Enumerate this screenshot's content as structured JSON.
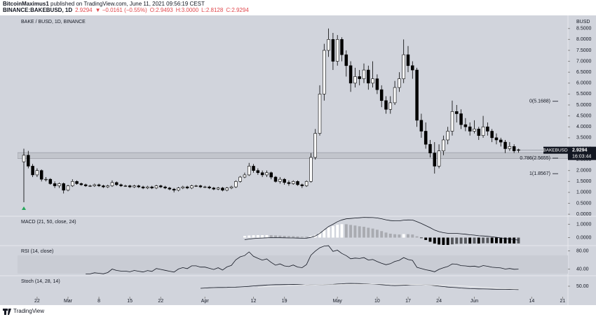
{
  "header": {
    "author": "BitcoinMaximus1",
    "published": "published on TradingView.com, June 11, 2021 09:56:19 CEST",
    "symbol": "BINANCE:BAKEBUSD, 1D",
    "last": "2.9294",
    "change": "▼ −0.0161 (−0.55%)",
    "ohlc": [
      "O:2.9493",
      "H:3.0000",
      "L:2.8128",
      "C:2.9294"
    ]
  },
  "footer": {
    "brand": "TradingView"
  },
  "chart_data": {
    "type": "candlestick",
    "title": "BAKE / BUSD, 1D, BINANCE",
    "currency": "BUSD",
    "price_tag": {
      "symbol": "BAKEBUSD",
      "price": "2.9294",
      "countdown": "16:03:44"
    },
    "open": [
      2.4,
      2.7,
      2.2,
      1.8,
      2.0,
      1.6,
      1.6,
      1.4,
      1.3,
      1.4,
      1.1,
      1.3,
      1.5,
      1.4,
      1.35,
      1.3,
      1.3,
      1.35,
      1.3,
      1.25,
      1.3,
      1.45,
      1.35,
      1.3,
      1.3,
      1.25,
      1.3,
      1.25,
      1.2,
      1.25,
      1.2,
      1.3,
      1.25,
      1.2,
      1.15,
      1.1,
      1.2,
      1.25,
      1.2,
      1.3,
      1.3,
      1.25,
      1.25,
      1.2,
      1.15,
      1.2,
      1.1,
      1.2,
      1.25,
      1.5,
      1.7,
      1.8,
      2.2,
      2.0,
      1.9,
      1.8,
      1.9,
      1.7,
      1.5,
      1.6,
      1.45,
      1.4,
      1.5,
      1.35,
      1.3,
      1.5,
      2.6,
      3.7,
      5.5,
      7.5,
      8.0,
      7.0,
      8.0,
      7.3,
      6.8,
      6.0,
      6.3,
      6.2,
      6.6,
      6.0,
      6.2,
      5.7,
      5.2,
      4.8,
      5.1,
      5.8,
      6.2,
      7.3,
      6.8,
      6.6,
      4.3,
      3.8,
      3.2,
      2.8,
      2.2,
      2.9,
      3.4,
      3.8,
      4.7,
      4.6,
      4.1,
      4.0,
      3.8,
      3.9,
      3.6,
      4.0,
      3.8,
      3.5,
      3.4,
      3.3,
      3.0,
      3.1,
      2.9493
    ],
    "high": [
      3.0,
      2.9,
      2.3,
      2.1,
      2.05,
      1.7,
      1.65,
      1.5,
      1.45,
      1.45,
      1.35,
      1.6,
      1.55,
      1.45,
      1.4,
      1.35,
      1.4,
      1.4,
      1.35,
      1.35,
      1.55,
      1.5,
      1.4,
      1.35,
      1.35,
      1.35,
      1.35,
      1.3,
      1.3,
      1.3,
      1.35,
      1.35,
      1.3,
      1.25,
      1.2,
      1.25,
      1.3,
      1.3,
      1.35,
      1.35,
      1.35,
      1.3,
      1.3,
      1.25,
      1.25,
      1.25,
      1.25,
      1.3,
      1.55,
      1.75,
      1.9,
      2.35,
      2.3,
      2.1,
      2.0,
      2.0,
      1.95,
      1.75,
      1.7,
      1.65,
      1.55,
      1.55,
      1.55,
      1.4,
      1.55,
      2.8,
      3.9,
      5.9,
      7.8,
      8.5,
      8.3,
      8.2,
      8.1,
      7.5,
      7.0,
      6.7,
      6.6,
      6.9,
      6.8,
      7.0,
      6.4,
      5.9,
      5.4,
      5.4,
      6.1,
      6.5,
      8.0,
      7.7,
      7.0,
      6.7,
      4.6,
      4.2,
      3.4,
      3.3,
      3.2,
      3.6,
      4.0,
      5.2,
      5.0,
      4.8,
      4.4,
      4.2,
      4.3,
      4.0,
      4.5,
      4.2,
      3.9,
      3.7,
      3.5,
      3.4,
      3.3,
      3.2,
      3.0
    ],
    "low": [
      0.55,
      2.1,
      1.7,
      1.7,
      1.5,
      1.5,
      1.35,
      1.2,
      1.2,
      0.95,
      1.05,
      1.25,
      1.35,
      1.3,
      1.25,
      1.25,
      1.25,
      1.25,
      1.2,
      1.2,
      1.25,
      1.3,
      1.25,
      1.25,
      1.2,
      1.2,
      1.2,
      1.15,
      1.15,
      1.15,
      1.15,
      1.2,
      1.15,
      1.1,
      1.0,
      1.05,
      1.15,
      1.15,
      1.15,
      1.25,
      1.2,
      1.2,
      1.15,
      1.1,
      1.1,
      1.05,
      1.05,
      1.15,
      1.2,
      1.45,
      1.65,
      1.75,
      1.9,
      1.8,
      1.7,
      1.7,
      1.6,
      1.45,
      1.4,
      1.35,
      1.3,
      1.35,
      1.3,
      1.2,
      1.25,
      1.45,
      2.5,
      3.6,
      5.2,
      7.2,
      6.6,
      6.8,
      7.0,
      6.3,
      5.6,
      5.8,
      5.9,
      6.0,
      5.7,
      5.8,
      5.5,
      4.9,
      4.6,
      4.6,
      5.0,
      5.6,
      6.0,
      6.5,
      6.2,
      4.0,
      3.5,
      3.0,
      2.6,
      1.86,
      2.1,
      2.7,
      3.2,
      3.6,
      4.2,
      3.9,
      3.8,
      3.6,
      3.7,
      3.4,
      3.5,
      3.6,
      3.3,
      3.2,
      3.1,
      2.8,
      2.9,
      2.8,
      2.8128
    ],
    "close": [
      2.7,
      2.2,
      1.8,
      2.0,
      1.6,
      1.6,
      1.4,
      1.3,
      1.4,
      1.1,
      1.3,
      1.5,
      1.4,
      1.35,
      1.3,
      1.3,
      1.35,
      1.3,
      1.25,
      1.3,
      1.45,
      1.35,
      1.3,
      1.3,
      1.25,
      1.3,
      1.25,
      1.2,
      1.25,
      1.2,
      1.3,
      1.25,
      1.2,
      1.15,
      1.1,
      1.2,
      1.25,
      1.2,
      1.3,
      1.3,
      1.25,
      1.25,
      1.2,
      1.15,
      1.2,
      1.1,
      1.2,
      1.25,
      1.5,
      1.7,
      1.8,
      2.2,
      2.0,
      1.9,
      1.8,
      1.9,
      1.7,
      1.5,
      1.6,
      1.45,
      1.4,
      1.5,
      1.35,
      1.3,
      1.5,
      2.6,
      3.7,
      5.5,
      7.5,
      8.0,
      7.0,
      8.0,
      7.3,
      6.8,
      6.0,
      6.3,
      6.2,
      6.6,
      6.0,
      6.2,
      5.7,
      5.2,
      4.8,
      5.1,
      5.8,
      6.2,
      7.3,
      6.8,
      6.6,
      4.3,
      3.8,
      3.2,
      2.8,
      2.2,
      2.9,
      3.4,
      3.8,
      4.7,
      4.6,
      4.1,
      4.0,
      3.8,
      3.9,
      3.6,
      4.0,
      3.8,
      3.5,
      3.4,
      3.3,
      3.0,
      3.1,
      2.9,
      2.9294
    ],
    "xlim": [
      -1.43,
      123.2
    ],
    "xticks": [
      {
        "value": 3,
        "label": "22"
      },
      {
        "value": 10,
        "label": "Mar"
      },
      {
        "value": 17,
        "label": "8"
      },
      {
        "value": 24,
        "label": "15"
      },
      {
        "value": 31,
        "label": "22"
      },
      {
        "value": 41,
        "label": "Apr"
      },
      {
        "value": 52,
        "label": "12"
      },
      {
        "value": 59,
        "label": "19"
      },
      {
        "value": 71,
        "label": "May"
      },
      {
        "value": 80,
        "label": "10"
      },
      {
        "value": 87,
        "label": "17"
      },
      {
        "value": 94,
        "label": "24"
      },
      {
        "value": 102,
        "label": "Jun"
      },
      {
        "value": 115,
        "label": "14"
      },
      {
        "value": 122,
        "label": "21"
      }
    ],
    "ylim": [
      -0.06,
      9.1
    ],
    "yticks": [
      {
        "value": 0,
        "label": "0.0000"
      },
      {
        "value": 0.5,
        "label": "0.5000"
      },
      {
        "value": 1,
        "label": "1.0000"
      },
      {
        "value": 1.5,
        "label": "1.5000"
      },
      {
        "value": 2,
        "label": "2.0000"
      },
      {
        "value": 2.5,
        "label": "2.5000"
      },
      {
        "value": 3,
        "label": "3.0000"
      },
      {
        "value": 3.5,
        "label": "3.5000"
      },
      {
        "value": 4,
        "label": "4.0000"
      },
      {
        "value": 4.5,
        "label": "4.5000"
      },
      {
        "value": 5,
        "label": "5.0000"
      },
      {
        "value": 5.5,
        "label": "5.5000"
      },
      {
        "value": 6,
        "label": "6.0000"
      },
      {
        "value": 6.5,
        "label": "6.5000"
      },
      {
        "value": 7,
        "label": "7.0000"
      },
      {
        "value": 7.5,
        "label": "7.5000"
      },
      {
        "value": 8,
        "label": "8.0000"
      },
      {
        "value": 8.5,
        "label": "8.5000"
      }
    ],
    "support_zone": [
      2.55,
      2.82
    ],
    "fib_levels": [
      {
        "label": "0(5.1688)",
        "value": 5.1688
      },
      {
        "label": "0.786(2.5655)",
        "value": 2.5655
      },
      {
        "label": "1(1.8567)",
        "value": 1.8567
      }
    ],
    "indicators": [
      {
        "type": "macd",
        "label": "MACD (21, 50, close, 24)",
        "params": [
          21,
          50,
          24
        ],
        "ylim": [
          -0.55,
          1.55
        ],
        "yticks": [
          {
            "value": 1,
            "label": "1.0000"
          },
          {
            "value": 0,
            "label": "0.0000"
          }
        ]
      },
      {
        "type": "rsi",
        "label": "RSI (14, close)",
        "params": [
          14
        ],
        "ylim": [
          27,
          90
        ],
        "yticks": [
          {
            "value": 80,
            "label": "80.00"
          },
          {
            "value": 40,
            "label": "40.00"
          }
        ]
      },
      {
        "type": "stoch",
        "label": "Stoch (14, 28, 14)",
        "params": [
          14,
          28,
          14
        ],
        "ylim": [
          0,
          100
        ],
        "yticks": [
          {
            "value": 50,
            "label": "50.00"
          }
        ]
      }
    ]
  }
}
